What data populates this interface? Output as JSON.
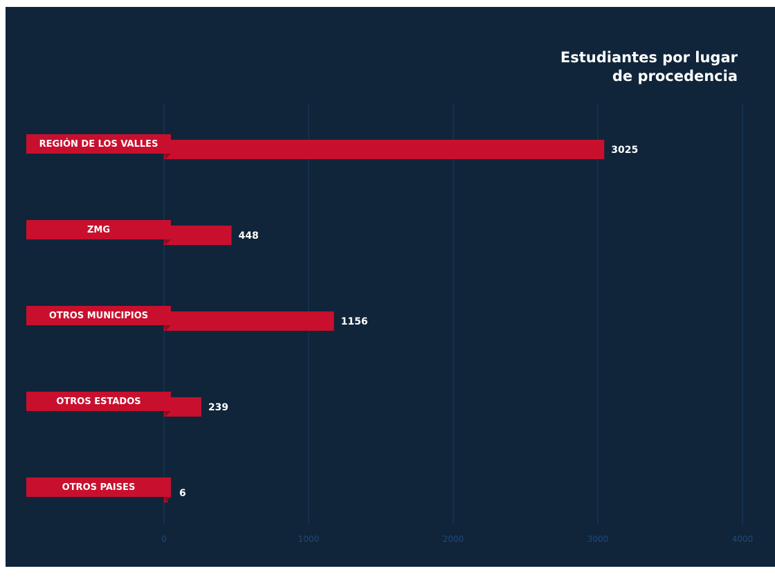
{
  "chart_data": {
    "type": "bar",
    "orientation": "horizontal",
    "title": [
      "Estudiantes por lugar",
      "de procedencia"
    ],
    "categories": [
      "REGIÓN DE LOS VALLES",
      "ZMG",
      "OTROS MUNICIPIOS",
      "OTROS ESTADOS",
      "OTROS PAISES"
    ],
    "values": [
      3025,
      448,
      1156,
      239,
      6
    ],
    "xlim": [
      0,
      4000
    ],
    "xticks": [
      0,
      1000,
      2000,
      3000,
      4000
    ],
    "grid": true,
    "legend": "none",
    "colors": {
      "background": "#10253a",
      "bar": "#c8102e",
      "bar_fold": "#8e0b20",
      "grid": "#173a63",
      "tick_label": "#1d4a7a",
      "text": "#ffffff"
    }
  }
}
